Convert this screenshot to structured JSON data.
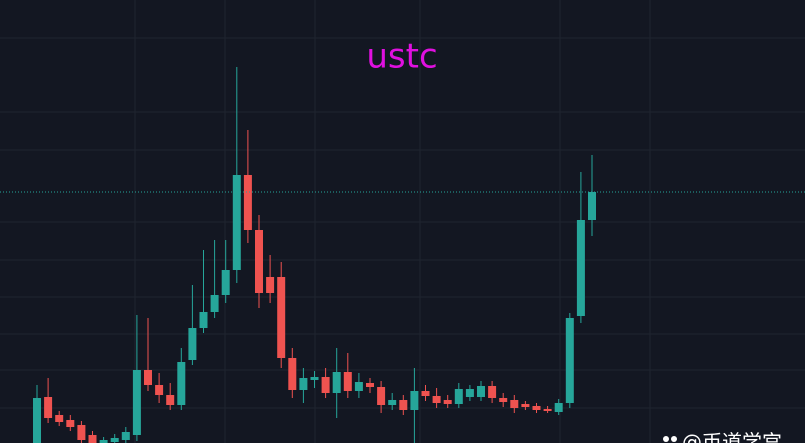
{
  "chart_data": {
    "type": "candlestick",
    "title": "ustc",
    "watermark": "@币道学宫",
    "ylim": [
      0,
      443
    ],
    "up_color": "#26a69a",
    "down_color": "#ef5350",
    "title_color": "#e010e0",
    "open": [
      0,
      46,
      28,
      23,
      18,
      8,
      0,
      1,
      3,
      8,
      73,
      58,
      48,
      38,
      83,
      115,
      131,
      148,
      173,
      268,
      213,
      166,
      166,
      85,
      53,
      63,
      66,
      50,
      71,
      52,
      60,
      56,
      38,
      43,
      33,
      52,
      47,
      43,
      39,
      46,
      46,
      57,
      45,
      43,
      39,
      37,
      34,
      31,
      40,
      127,
      223
    ],
    "high": [
      58,
      65,
      32,
      28,
      22,
      12,
      6,
      9,
      16,
      128,
      125,
      70,
      60,
      95,
      158,
      193,
      203,
      203,
      376,
      313,
      228,
      188,
      181,
      95,
      75,
      72,
      75,
      95,
      90,
      70,
      65,
      62,
      50,
      48,
      75,
      58,
      55,
      48,
      60,
      58,
      62,
      62,
      50,
      48,
      42,
      40,
      37,
      44,
      130,
      271,
      288
    ],
    "low": [
      0,
      20,
      17,
      12,
      0,
      0,
      0,
      0,
      0,
      2,
      52,
      40,
      33,
      33,
      78,
      110,
      125,
      140,
      160,
      200,
      135,
      140,
      75,
      45,
      40,
      55,
      45,
      25,
      45,
      45,
      50,
      30,
      33,
      28,
      0,
      42,
      35,
      35,
      35,
      42,
      42,
      40,
      36,
      30,
      33,
      30,
      30,
      28,
      35,
      120,
      207
    ],
    "close": [
      45,
      25,
      21,
      16,
      3,
      0,
      3,
      5,
      11,
      73,
      58,
      48,
      38,
      81,
      115,
      131,
      148,
      173,
      268,
      213,
      150,
      150,
      85,
      53,
      65,
      66,
      50,
      71,
      52,
      61,
      56,
      38,
      43,
      33,
      52,
      47,
      40,
      39,
      54,
      54,
      57,
      45,
      41,
      35,
      36,
      33,
      32,
      40,
      125,
      223,
      251
    ]
  }
}
